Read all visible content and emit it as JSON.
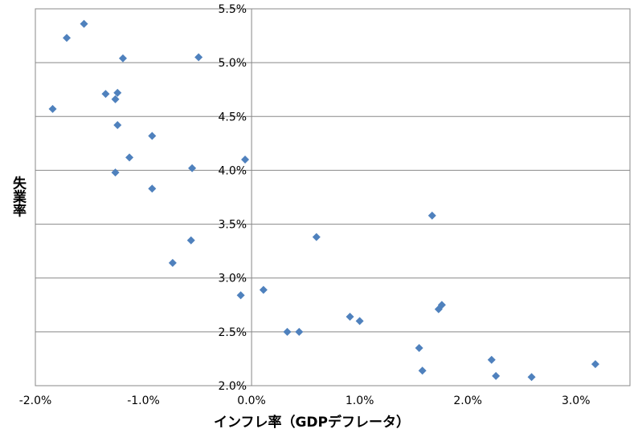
{
  "chart_data": {
    "type": "scatter",
    "xlabel": "インフレ率（GDPデフレータ）",
    "ylabel": "失業率",
    "xlim": [
      -0.02,
      0.035
    ],
    "ylim": [
      0.02,
      0.055
    ],
    "x_ticks": [
      -0.02,
      -0.01,
      0.0,
      0.01,
      0.02,
      0.03
    ],
    "x_tick_labels": [
      "-2.0%",
      "-1.0%",
      "0.0%",
      "1.0%",
      "2.0%",
      "3.0%"
    ],
    "y_ticks": [
      0.02,
      0.025,
      0.03,
      0.035,
      0.04,
      0.045,
      0.05,
      0.055
    ],
    "y_tick_labels": [
      "2.0%",
      "2.5%",
      "3.0%",
      "3.5%",
      "4.0%",
      "4.5%",
      "5.0%",
      "5.5%"
    ],
    "grid": "horizontal",
    "marker_color": "#4F81BD",
    "marker": "diamond",
    "points": [
      [
        -0.0155,
        0.0536
      ],
      [
        -0.0171,
        0.0523
      ],
      [
        -0.0119,
        0.0504
      ],
      [
        -0.0049,
        0.0505
      ],
      [
        -0.0184,
        0.0457
      ],
      [
        -0.0135,
        0.0471
      ],
      [
        -0.0124,
        0.0472
      ],
      [
        -0.0126,
        0.0466
      ],
      [
        -0.0124,
        0.0442
      ],
      [
        -0.0092,
        0.0432
      ],
      [
        -0.0113,
        0.0412
      ],
      [
        -0.0055,
        0.0402
      ],
      [
        -0.0126,
        0.0398
      ],
      [
        -0.0092,
        0.0383
      ],
      [
        -0.0006,
        0.041
      ],
      [
        -0.0056,
        0.0335
      ],
      [
        -0.0073,
        0.0314
      ],
      [
        0.0011,
        0.0289
      ],
      [
        -0.001,
        0.0284
      ],
      [
        0.006,
        0.0338
      ],
      [
        0.0033,
        0.025
      ],
      [
        0.0044,
        0.025
      ],
      [
        0.0091,
        0.0264
      ],
      [
        0.01,
        0.026
      ],
      [
        0.0167,
        0.0358
      ],
      [
        0.0173,
        0.0271
      ],
      [
        0.0176,
        0.0275
      ],
      [
        0.0155,
        0.0235
      ],
      [
        0.0158,
        0.0214
      ],
      [
        0.0222,
        0.0224
      ],
      [
        0.0226,
        0.0209
      ],
      [
        0.0259,
        0.0208
      ],
      [
        0.0318,
        0.022
      ]
    ]
  }
}
